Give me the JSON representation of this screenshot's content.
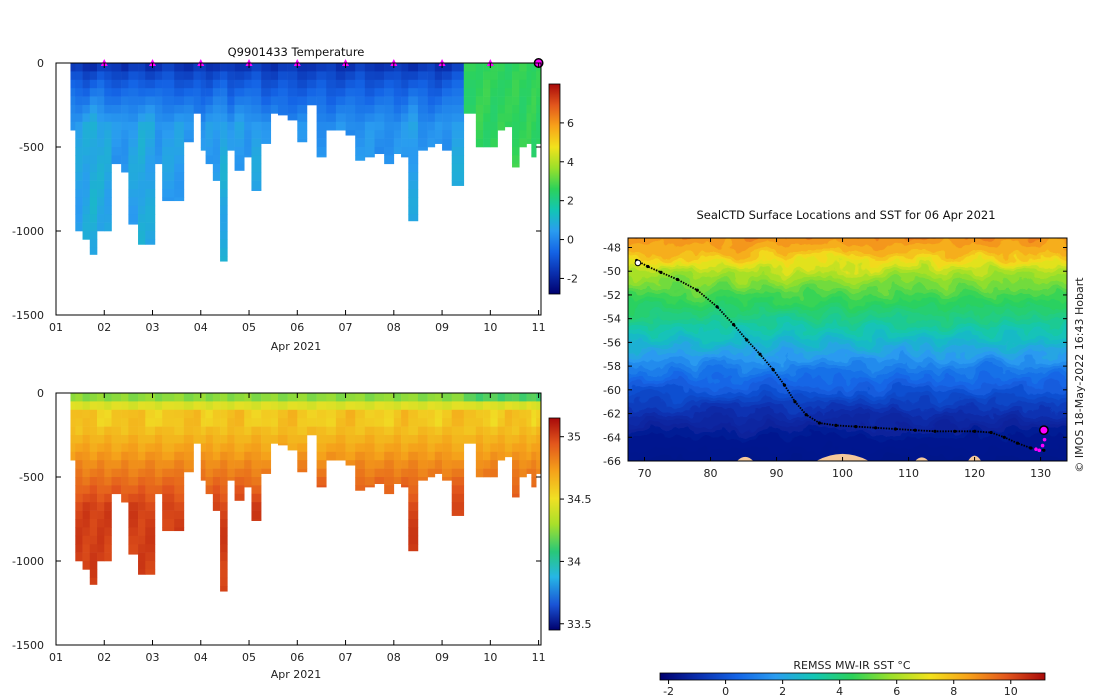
{
  "colors": {
    "temperature_scale": [
      "#00006e",
      "#0a2fae",
      "#1464e6",
      "#2a9cf0",
      "#12c6b4",
      "#2cd25a",
      "#9be02a",
      "#f2e21c",
      "#f7a21a",
      "#e2561c",
      "#a80a0a"
    ],
    "salinity_scale": [
      "#00006e",
      "#1a54d6",
      "#26b6e6",
      "#28c878",
      "#a9e02a",
      "#f0e024",
      "#f5a21a",
      "#e2561c",
      "#a80a0a"
    ],
    "station_marker": "#ff00ff",
    "land": "#f5c89a"
  },
  "chart_data": [
    {
      "type": "heatmap",
      "title": "Q9901433  Temperature",
      "xlabel": "Apr 2021",
      "x_tick_labels": [
        "01",
        "02",
        "03",
        "04",
        "05",
        "06",
        "07",
        "08",
        "09",
        "10",
        "11"
      ],
      "x_range": [
        1,
        11.05
      ],
      "y_tick_labels": [
        "0",
        "-500",
        "-1000",
        "-1500"
      ],
      "y_range": [
        -1500,
        0
      ],
      "colorbar": {
        "ticks": [
          "-2",
          "0",
          "2",
          "4",
          "6"
        ],
        "range": [
          -2.8,
          8
        ]
      },
      "station_days": [
        2,
        3,
        4,
        5,
        6,
        7,
        8,
        9,
        10
      ],
      "latest_day": 11,
      "profiles": {
        "day": [
          1.3,
          1.4,
          1.55,
          1.7,
          1.85,
          2.0,
          2.15,
          2.35,
          2.5,
          2.7,
          2.85,
          3.05,
          3.2,
          3.45,
          3.65,
          3.85,
          4.0,
          4.1,
          4.25,
          4.4,
          4.55,
          4.7,
          4.9,
          5.05,
          5.25,
          5.45,
          5.6,
          5.8,
          6.0,
          6.2,
          6.4,
          6.6,
          6.8,
          7.0,
          7.2,
          7.4,
          7.6,
          7.8,
          8.0,
          8.15,
          8.3,
          8.5,
          8.7,
          8.85,
          9.0,
          9.2,
          9.45,
          9.7,
          9.85,
          10.0,
          10.15,
          10.3,
          10.45,
          10.6,
          10.75,
          10.85,
          10.95
        ],
        "depth": [
          400,
          1000,
          1050,
          1140,
          1000,
          1000,
          600,
          650,
          960,
          1080,
          1080,
          600,
          820,
          820,
          470,
          300,
          520,
          600,
          700,
          1180,
          520,
          640,
          560,
          760,
          480,
          300,
          310,
          340,
          470,
          250,
          560,
          400,
          400,
          430,
          580,
          560,
          540,
          600,
          540,
          560,
          940,
          520,
          500,
          480,
          520,
          730,
          300,
          500,
          500,
          500,
          400,
          380,
          620,
          500,
          480,
          560,
          480
        ],
        "surface_temp": [
          -1.5,
          -1.6,
          -1.7,
          -1.6,
          -1.5,
          -1.6,
          -1.4,
          -1.7,
          -1.6,
          -1.5,
          -1.6,
          -1.6,
          -1.5,
          -1.6,
          -1.6,
          -1.5,
          -1.6,
          -1.6,
          -1.5,
          -1.6,
          -1.6,
          -1.5,
          -1.6,
          -1.5,
          -1.6,
          -1.6,
          -1.5,
          -1.6,
          -1.6,
          -1.5,
          -1.6,
          -1.5,
          -1.6,
          -1.6,
          -1.5,
          -1.6,
          -1.5,
          -1.6,
          -1.6,
          -1.5,
          -1.6,
          -1.6,
          -1.5,
          -1.6,
          -1.6,
          -1.5,
          2.6,
          2.7,
          2.6,
          2.5,
          2.7,
          2.6,
          2.5,
          2.6,
          2.7,
          2.6,
          2.5
        ],
        "deep_temp": [
          0.4,
          0.6,
          0.7,
          0.9,
          0.8,
          0.7,
          0.3,
          0.4,
          0.6,
          0.8,
          0.7,
          0.4,
          0.5,
          0.5,
          0.3,
          0.1,
          0.3,
          0.4,
          0.5,
          0.8,
          0.3,
          0.5,
          0.4,
          0.6,
          0.2,
          0.1,
          0.0,
          0.2,
          0.2,
          0.0,
          0.3,
          0.1,
          0.2,
          0.2,
          0.3,
          0.3,
          0.2,
          0.3,
          0.3,
          0.3,
          0.6,
          0.3,
          0.2,
          0.2,
          0.3,
          0.7,
          2.6,
          2.6,
          2.6,
          2.6,
          2.6,
          2.5,
          2.7,
          2.6,
          2.6,
          2.6,
          2.6
        ]
      }
    },
    {
      "type": "heatmap",
      "title": "",
      "xlabel": "Apr 2021",
      "x_tick_labels": [
        "01",
        "02",
        "03",
        "04",
        "05",
        "06",
        "07",
        "08",
        "09",
        "10",
        "11"
      ],
      "x_range": [
        1,
        11.05
      ],
      "y_tick_labels": [
        "0",
        "-500",
        "-1000",
        "-1500"
      ],
      "y_range": [
        -1500,
        0
      ],
      "colorbar": {
        "ticks": [
          "35",
          "34.5",
          "34",
          "33.5"
        ],
        "range": [
          33.45,
          35.15
        ]
      },
      "surface_salinity": 34.2,
      "mid_salinity": 34.6,
      "deep_salinity": 35.0
    },
    {
      "type": "heatmap",
      "title": "SealCTD Surface Locations and SST for 06 Apr 2021",
      "x_tick_labels": [
        "70",
        "80",
        "90",
        "100",
        "110",
        "120",
        "130"
      ],
      "x_range": [
        67.5,
        134
      ],
      "y_tick_labels": [
        "-48",
        "-50",
        "-52",
        "-54",
        "-56",
        "-58",
        "-60",
        "-62",
        "-64",
        "-66"
      ],
      "y_range": [
        -66,
        -47.2
      ],
      "colorbar_label": "REMSS MW-IR SST °C",
      "colorbar": {
        "ticks": [
          "-2",
          "0",
          "2",
          "4",
          "6",
          "8",
          "10"
        ],
        "range": [
          -2.3,
          11.2
        ]
      },
      "credit": "© IMOS 18-May-2022 16:43 Hobart",
      "track": {
        "lon": [
          68.8,
          70.5,
          72.5,
          75,
          78,
          81,
          83.5,
          85.5,
          87.5,
          89.5,
          91.2,
          92.8,
          94.5,
          96.5,
          99,
          102,
          105,
          108,
          111,
          114,
          117,
          120,
          122.5,
          124.5,
          126.5,
          128.5,
          130.5
        ],
        "lat": [
          -49.1,
          -49.6,
          -50.1,
          -50.7,
          -51.6,
          -53.0,
          -54.5,
          -55.8,
          -57.0,
          -58.3,
          -59.6,
          -61.0,
          -62.1,
          -62.8,
          -63.0,
          -63.1,
          -63.2,
          -63.3,
          -63.4,
          -63.5,
          -63.5,
          -63.5,
          -63.6,
          -64.0,
          -64.5,
          -64.9,
          -65.1
        ]
      },
      "sst_bands": {
        "lat": [
          -47.2,
          -48.5,
          -50,
          -52,
          -54,
          -56,
          -58,
          -60,
          -62,
          -64,
          -66
        ],
        "sst": [
          9.6,
          7.8,
          6.0,
          4.6,
          3.6,
          2.4,
          1.0,
          -0.1,
          -1.1,
          -1.6,
          -1.8
        ]
      }
    }
  ]
}
